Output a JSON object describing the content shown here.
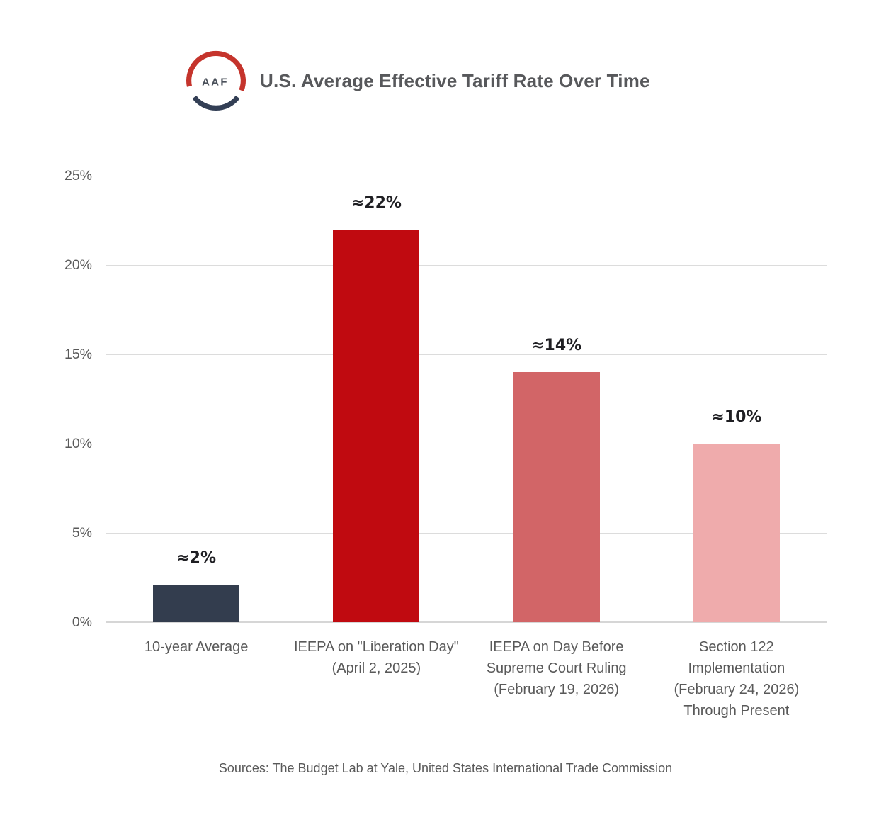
{
  "header": {
    "title": "U.S. Average Effective Tariff Rate Over Time",
    "logo_text": "AAF",
    "logo_red": "#c5342c",
    "logo_navy": "#333f55"
  },
  "footer": {
    "sources": "Sources: The Budget Lab at Yale, United States International Trade Commission"
  },
  "chart_data": {
    "type": "bar",
    "title": "U.S. Average Effective Tariff Rate Over Time",
    "categories": [
      "10-year Average",
      "IEEPA on \"Liberation Day\" (April 2, 2025)",
      "IEEPA on Day Before Supreme Court Ruling (February 19, 2026)",
      "Section 122 Implementation (February 24, 2026) Through Present"
    ],
    "categories_lines": [
      [
        "10-year Average"
      ],
      [
        "IEEPA on \"Liberation Day\"",
        "(April 2, 2025)"
      ],
      [
        "IEEPA on Day Before",
        "Supreme Court Ruling",
        "(February 19, 2026)"
      ],
      [
        "Section 122",
        "Implementation",
        "(February 24, 2026)",
        "Through Present"
      ]
    ],
    "values": [
      2.1,
      22,
      14,
      10
    ],
    "value_labels": [
      "≈2%",
      "≈22%",
      "≈14%",
      "≈10%"
    ],
    "bar_colors": [
      "#333d4e",
      "#c00a10",
      "#d26567",
      "#efabac"
    ],
    "xlabel": "",
    "ylabel": "",
    "ylim": [
      0,
      25
    ],
    "yticks": [
      0,
      5,
      10,
      15,
      20,
      25
    ],
    "ytick_labels": [
      "0%",
      "5%",
      "10%",
      "15%",
      "20%",
      "25%"
    ],
    "grid": "horizontal",
    "legend": "none",
    "colors": {
      "gridline": "#dcdcdc",
      "baseline": "#d6d6d6",
      "tick_text": "#595959",
      "value_text": "#1f1f23",
      "title_text": "#57585b"
    }
  }
}
